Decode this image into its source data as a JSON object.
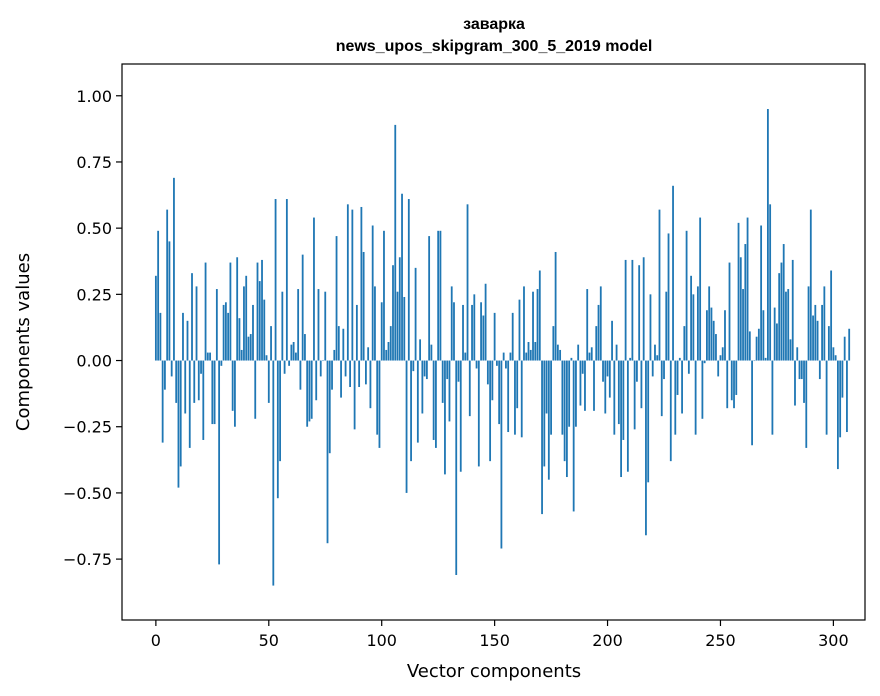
{
  "chart_data": {
    "type": "bar",
    "title": "заварка",
    "subtitle": "news_upos_skipgram_300_5_2019 model",
    "xlabel": "Vector components",
    "ylabel": "Components values",
    "xlim": [
      -15,
      314
    ],
    "ylim": [
      -0.98,
      1.12
    ],
    "xticks": [
      0,
      50,
      100,
      150,
      200,
      250,
      300
    ],
    "xtick_labels": [
      "0",
      "50",
      "100",
      "150",
      "200",
      "250",
      "300"
    ],
    "yticks": [
      -0.75,
      -0.5,
      -0.25,
      0.0,
      0.25,
      0.5,
      0.75,
      1.0
    ],
    "ytick_labels": [
      "−0.75",
      "−0.50",
      "−0.25",
      "0.00",
      "0.25",
      "0.50",
      "0.75",
      "1.00"
    ],
    "grid": false,
    "bar_color": "#1f77b4",
    "values": [
      0.32,
      0.49,
      0.18,
      -0.31,
      -0.11,
      0.57,
      0.45,
      -0.06,
      0.69,
      -0.16,
      -0.48,
      -0.4,
      0.18,
      -0.2,
      0.15,
      -0.33,
      0.33,
      -0.16,
      0.28,
      -0.15,
      -0.05,
      -0.3,
      0.37,
      0.03,
      0.03,
      -0.24,
      -0.24,
      0.27,
      -0.77,
      -0.02,
      0.21,
      0.22,
      0.18,
      0.37,
      -0.19,
      -0.25,
      0.39,
      0.16,
      0.04,
      0.28,
      0.32,
      0.09,
      0.1,
      0.21,
      -0.22,
      0.37,
      0.3,
      0.38,
      0.23,
      0.02,
      -0.16,
      0.13,
      -0.85,
      0.61,
      -0.52,
      -0.38,
      0.26,
      -0.05,
      0.61,
      -0.02,
      0.06,
      0.07,
      0.03,
      0.27,
      -0.11,
      0.4,
      0.1,
      -0.25,
      -0.23,
      -0.22,
      0.54,
      -0.15,
      0.27,
      -0.06,
      0.0,
      0.26,
      -0.69,
      -0.35,
      -0.11,
      0.04,
      0.47,
      0.13,
      -0.14,
      0.12,
      -0.06,
      0.59,
      -0.1,
      0.57,
      -0.26,
      0.21,
      -0.1,
      0.58,
      0.41,
      -0.09,
      0.05,
      -0.18,
      0.51,
      0.28,
      -0.28,
      -0.33,
      0.22,
      0.49,
      0.04,
      0.07,
      0.13,
      0.36,
      0.89,
      0.26,
      0.39,
      0.63,
      0.24,
      -0.5,
      0.61,
      -0.38,
      -0.04,
      0.35,
      -0.31,
      0.08,
      -0.2,
      -0.06,
      -0.07,
      0.47,
      0.06,
      -0.3,
      -0.33,
      0.49,
      0.49,
      -0.16,
      -0.43,
      -0.07,
      -0.23,
      0.28,
      0.22,
      -0.81,
      -0.08,
      -0.42,
      0.21,
      0.03,
      0.59,
      -0.21,
      0.21,
      0.25,
      -0.03,
      -0.4,
      0.22,
      0.17,
      0.29,
      -0.09,
      -0.38,
      -0.15,
      0.18,
      -0.02,
      -0.24,
      -0.71,
      0.03,
      -0.03,
      -0.27,
      0.03,
      0.18,
      -0.28,
      -0.18,
      0.23,
      -0.29,
      0.28,
      0.03,
      0.07,
      0.04,
      0.26,
      0.07,
      0.27,
      0.34,
      -0.58,
      -0.4,
      -0.2,
      -0.45,
      -0.28,
      0.13,
      0.41,
      0.06,
      0.04,
      -0.28,
      -0.38,
      -0.44,
      -0.25,
      0.01,
      -0.57,
      -0.25,
      0.06,
      -0.17,
      -0.05,
      -0.19,
      0.27,
      0.03,
      0.05,
      -0.19,
      0.13,
      0.21,
      0.28,
      -0.08,
      -0.2,
      -0.06,
      -0.14,
      0.15,
      -0.28,
      0.06,
      -0.24,
      -0.44,
      -0.3,
      0.38,
      -0.42,
      0.01,
      0.38,
      -0.26,
      -0.08,
      0.36,
      -0.18,
      0.39,
      -0.66,
      -0.46,
      0.25,
      -0.06,
      0.06,
      0.02,
      0.57,
      -0.21,
      -0.07,
      0.26,
      0.48,
      -0.38,
      0.66,
      -0.28,
      -0.13,
      0.01,
      -0.2,
      0.13,
      0.49,
      -0.05,
      0.32,
      0.25,
      -0.28,
      0.28,
      0.54,
      -0.22,
      -0.01,
      0.19,
      0.28,
      0.2,
      0.15,
      0.1,
      -0.06,
      0.02,
      0.05,
      0.19,
      -0.18,
      0.37,
      -0.15,
      -0.18,
      -0.13,
      0.52,
      0.39,
      0.27,
      0.44,
      0.54,
      0.11,
      -0.32,
      0.0,
      0.09,
      0.12,
      0.51,
      0.19,
      0.01,
      0.95,
      0.59,
      -0.28,
      0.2,
      0.14,
      0.33,
      0.37,
      0.44,
      0.26,
      0.27,
      0.08,
      0.38,
      -0.17,
      0.05,
      -0.07,
      -0.07,
      -0.16,
      -0.33,
      0.28,
      0.57,
      0.17,
      0.21,
      0.15,
      -0.07,
      0.21,
      0.28,
      -0.28,
      0.13,
      0.34,
      0.05,
      0.02,
      -0.41,
      -0.29,
      -0.14,
      0.09,
      -0.27,
      0.12
    ]
  }
}
